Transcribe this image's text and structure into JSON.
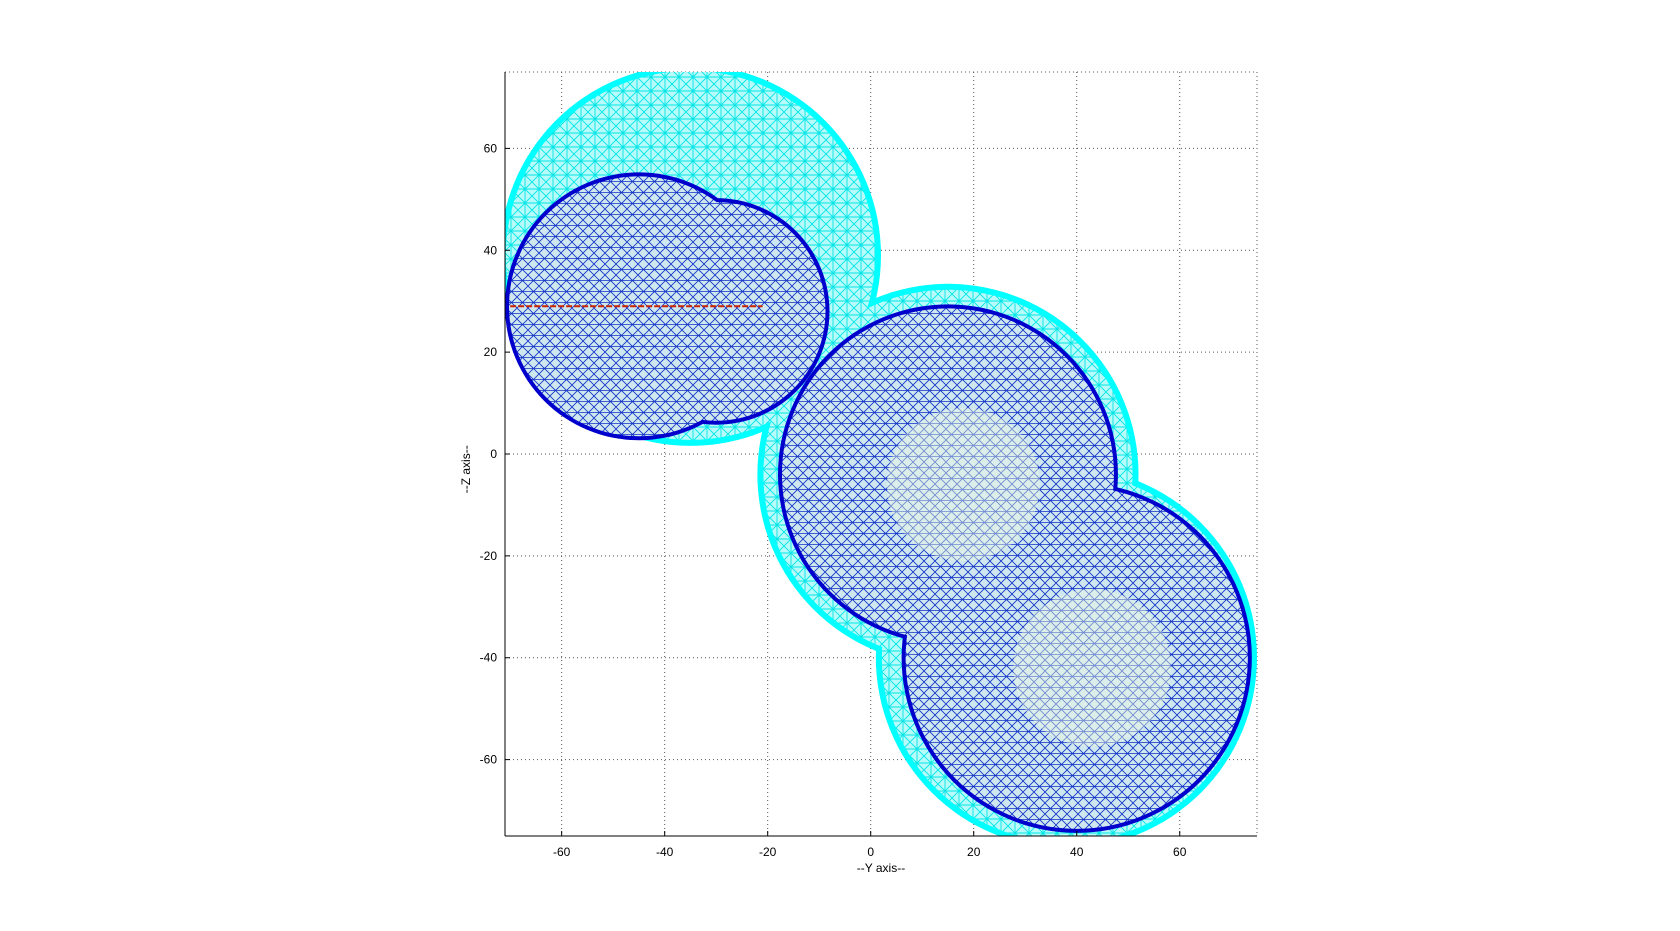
{
  "chart_data": {
    "type": "wireframe-mesh",
    "title": "",
    "xlabel": "--Y axis--",
    "ylabel": "--Z axis--",
    "xlim": [
      -71,
      75
    ],
    "ylim": [
      -75,
      75
    ],
    "xticks": [
      -60,
      -40,
      -20,
      0,
      20,
      40,
      60
    ],
    "yticks": [
      60,
      40,
      20,
      0,
      -20,
      -40,
      -60
    ],
    "grid": true,
    "grid_style": "dotted",
    "colors": {
      "outer_mesh": "#00ffff",
      "inner_mesh": "#0000cc",
      "inner_fill": "#e8f6e0",
      "marker_line": "#cc2200",
      "grid": "#555555",
      "axis": "#000000"
    },
    "series": [
      {
        "type": "outer-surface",
        "color": "#00ffff",
        "spheres": [
          {
            "cy": -35,
            "cz": 39,
            "r": 37
          },
          {
            "cy": 15,
            "cz": -4,
            "r": 37
          },
          {
            "cy": 38,
            "cz": -40,
            "r": 37
          }
        ]
      },
      {
        "type": "inner-surface",
        "color": "#0000cc",
        "spheres": [
          {
            "cy": -45,
            "cz": 29,
            "r": 26
          },
          {
            "cy": -30,
            "cz": 28,
            "r": 22
          },
          {
            "cy": 15,
            "cz": -4,
            "r": 33
          },
          {
            "cy": 40,
            "cz": -40,
            "r": 34
          }
        ]
      },
      {
        "type": "line",
        "color": "#cc2200",
        "y": [
          -70,
          -21
        ],
        "z": [
          29,
          29
        ]
      }
    ]
  }
}
